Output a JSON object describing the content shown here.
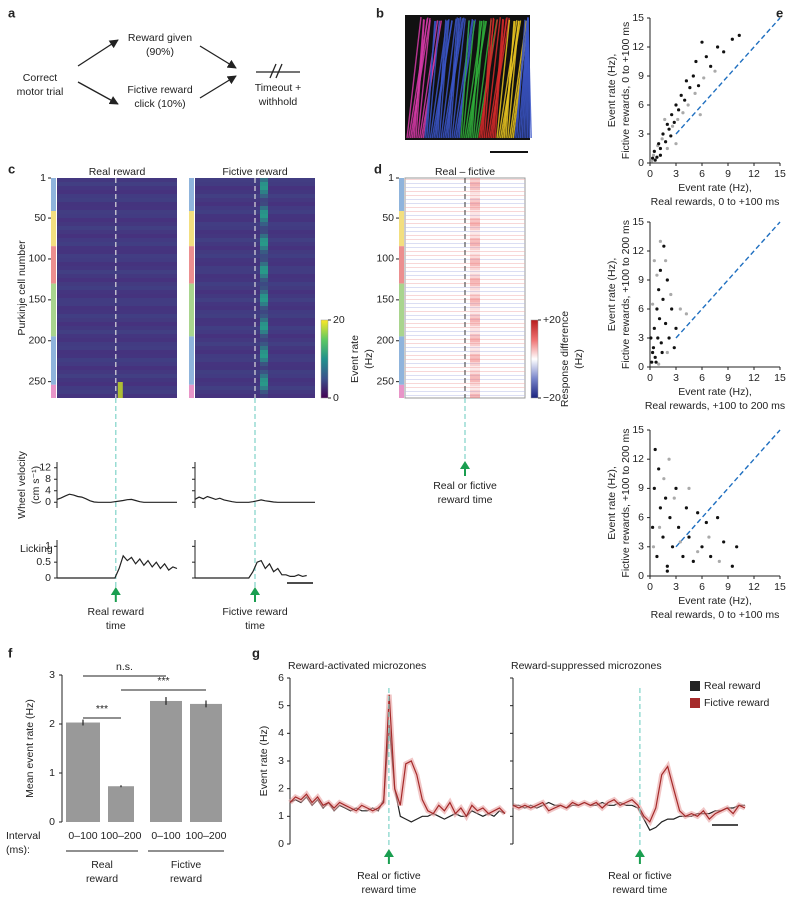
{
  "panel_labels": [
    "a",
    "b",
    "c",
    "d",
    "e",
    "f",
    "g"
  ],
  "diagram": {
    "start": [
      "Correct",
      "motor trial"
    ],
    "upper": [
      "Reward given",
      "(90%)"
    ],
    "lower": [
      "Fictive reward",
      "click (10%)"
    ],
    "end": [
      "Timeout +",
      "withhold"
    ]
  },
  "heatmaps": [
    {
      "title": "Real reward",
      "ylabel": "Purkinje cell number",
      "ylim": [
        1,
        270
      ],
      "yticks": [
        1,
        50,
        100,
        150,
        200,
        250
      ],
      "caption": [
        "Real reward",
        "time"
      ]
    },
    {
      "title": "Fictive reward",
      "ylim": [
        1,
        270
      ],
      "caption": [
        "Fictive reward",
        "time"
      ]
    },
    {
      "title": "Real – fictive",
      "ylim": [
        1,
        270
      ],
      "yticks": [
        1,
        50,
        100,
        150,
        200,
        250
      ],
      "caption": [
        "Real or fictive",
        "reward time"
      ]
    }
  ],
  "colorbars": [
    {
      "label": [
        "Event rate",
        "(Hz)"
      ],
      "lim": [
        0,
        20
      ],
      "ticks": [
        0,
        20
      ]
    },
    {
      "label": [
        "Response difference",
        "(Hz)"
      ],
      "lim": [
        -20,
        20
      ],
      "ticks": [
        {
          "value": 20,
          "label": "+20"
        },
        {
          "value": -20,
          "label": "−20"
        }
      ]
    }
  ],
  "chart_data": [
    {
      "type": "line",
      "ylabel": [
        "Wheel velocity",
        "(cm s⁻¹)"
      ],
      "ylim": [
        -2,
        14
      ],
      "yticks": [
        0,
        4,
        8,
        12
      ],
      "color": "#222222",
      "values": [
        1.0,
        1.5,
        2.2,
        2.8,
        2.5,
        2.0,
        1.8,
        1.2,
        0.5,
        0.1,
        0,
        0,
        0,
        0,
        0.2,
        0.4,
        0.6,
        0.9,
        1.0,
        0.6,
        0.2,
        0,
        0,
        0,
        0,
        0,
        0,
        0,
        0,
        0
      ]
    },
    {
      "type": "line",
      "ylim": [
        -2,
        14
      ],
      "yticks": [
        0,
        4,
        8,
        12
      ],
      "color": "#222222",
      "values": [
        1.0,
        1.8,
        1.2,
        2.0,
        1.5,
        1.0,
        1.4,
        0.8,
        0.5,
        0.2,
        0,
        0,
        0,
        0,
        0.2,
        0.5,
        0.8,
        0.5,
        0.3,
        0.1,
        0,
        0,
        0,
        0,
        0,
        0,
        0,
        0,
        0,
        0
      ]
    },
    {
      "type": "line",
      "ylabel": "Licking",
      "ylim": [
        0,
        1.2
      ],
      "yticks": [
        0,
        0.5,
        1
      ],
      "color": "#222222",
      "values": [
        0,
        0,
        0,
        0,
        0,
        0,
        0,
        0,
        0,
        0,
        0,
        0,
        0,
        0,
        0,
        0.3,
        0.7,
        0.55,
        0.65,
        0.45,
        0.6,
        0.4,
        0.55,
        0.35,
        0.5,
        0.3,
        0.45,
        0.25,
        0.35,
        0.3
      ]
    },
    {
      "type": "line",
      "ylim": [
        0,
        1.2
      ],
      "yticks": [
        0,
        0.5,
        1
      ],
      "color": "#222222",
      "values": [
        0,
        0,
        0,
        0,
        0,
        0,
        0,
        0,
        0,
        0,
        0,
        0,
        0,
        0,
        0.2,
        0.5,
        0.55,
        0.3,
        0.45,
        0.2,
        0.3,
        0.1,
        0.1,
        0.05,
        0.05,
        0.1,
        0.05,
        0.08,
        null,
        null
      ]
    },
    {
      "type": "scatter",
      "xlabel": [
        "Event rate (Hz),",
        "Real rewards, 0 to +100 ms"
      ],
      "ylabel": [
        "Event rate (Hz),",
        "Fictive rewards, 0 to +100 ms"
      ],
      "xlim": [
        0,
        15
      ],
      "ylim": [
        0,
        15
      ],
      "xticks": [
        0,
        3,
        6,
        9,
        12,
        15
      ],
      "yticks": [
        0,
        3,
        6,
        9,
        12,
        15
      ],
      "series": [
        {
          "color": "#aaaaaa",
          "x": [
            0.4,
            0.9,
            1.4,
            2,
            2.6,
            3.2,
            3.8,
            4.4,
            5.2,
            6.2,
            7.5,
            1.7,
            0.2,
            3,
            5.8
          ],
          "values": [
            0.8,
            1.8,
            2.5,
            1.5,
            3.8,
            4.5,
            5.2,
            6,
            7.2,
            8.8,
            9.5,
            4.5,
            0.2,
            2,
            5
          ]
        },
        {
          "color": "#111111",
          "x": [
            0.3,
            0.5,
            0.8,
            1,
            1.2,
            1.5,
            1.8,
            2,
            2.2,
            2.5,
            2.8,
            3,
            3.3,
            3.6,
            4,
            4.2,
            4.6,
            5,
            5.3,
            5.6,
            6,
            6.5,
            7,
            7.8,
            8.5,
            9.5,
            10.3,
            1.2,
            0.6,
            2.4
          ],
          "values": [
            0.5,
            1.2,
            0.6,
            2,
            1.5,
            3,
            2.2,
            4,
            3.5,
            5,
            4.2,
            6,
            5.5,
            7,
            6.5,
            8.5,
            7.8,
            9,
            10.5,
            8,
            12.5,
            11,
            10,
            12,
            11.5,
            12.8,
            13.2,
            0.8,
            0.3,
            2.8
          ]
        }
      ]
    },
    {
      "type": "scatter",
      "xlabel": [
        "Event rate (Hz),",
        "Real rewards, +100 to 200 ms"
      ],
      "ylabel": [
        "Event rate (Hz),",
        "Fictive rewards, +100 to 200 ms"
      ],
      "xlim": [
        0,
        15
      ],
      "ylim": [
        0,
        15
      ],
      "xticks": [
        0,
        3,
        6,
        9,
        12,
        15
      ],
      "yticks": [
        0,
        3,
        6,
        9,
        12,
        15
      ],
      "series": [
        {
          "color": "#aaaaaa",
          "x": [
            0.3,
            0.8,
            1.2,
            1.8,
            2.4,
            3.5,
            4.2,
            1,
            2,
            0.5
          ],
          "values": [
            6.5,
            9.5,
            13,
            11,
            7.5,
            6,
            5.5,
            0.3,
            1.5,
            11
          ]
        },
        {
          "color": "#111111",
          "x": [
            0.2,
            0.4,
            0.5,
            0.6,
            0.8,
            0.9,
            1,
            1.1,
            1.2,
            1.3,
            1.5,
            1.6,
            1.8,
            2,
            2.2,
            2.5,
            2.8,
            3,
            0.3,
            0.7,
            1.4,
            0.1
          ],
          "values": [
            0.5,
            2,
            4,
            1,
            6,
            3,
            8,
            5,
            10,
            2.5,
            7,
            12.5,
            4.5,
            9,
            3,
            6,
            2,
            4,
            1.5,
            0.5,
            1.5,
            3
          ]
        }
      ]
    },
    {
      "type": "scatter",
      "xlabel": [
        "Event rate (Hz),",
        "Real rewards, 0 to +100 ms"
      ],
      "ylabel": [
        "Event rate (Hz),",
        "Fictive rewards, +100 to 200 ms"
      ],
      "xlim": [
        0,
        15
      ],
      "ylim": [
        0,
        15
      ],
      "xticks": [
        0,
        3,
        6,
        9,
        12,
        15
      ],
      "yticks": [
        0,
        3,
        6,
        9,
        12,
        15
      ],
      "series": [
        {
          "color": "#aaaaaa",
          "x": [
            0.4,
            1.1,
            1.6,
            2.2,
            2.8,
            3.5,
            4.5,
            5.5,
            6.8,
            8
          ],
          "values": [
            3,
            5,
            10,
            12,
            8,
            3.5,
            9,
            2.5,
            4,
            1.5
          ]
        },
        {
          "color": "#111111",
          "x": [
            0.3,
            0.5,
            0.8,
            1,
            1.2,
            1.5,
            1.8,
            2,
            2.3,
            2.6,
            3,
            3.3,
            3.8,
            4.2,
            4.5,
            5,
            5.5,
            6,
            6.5,
            7,
            7.8,
            8.5,
            9.5,
            10,
            0.6,
            2
          ],
          "values": [
            5,
            9,
            2,
            11,
            7,
            4,
            8,
            1,
            6,
            3,
            9,
            5,
            2,
            7,
            4,
            1.5,
            6.5,
            3,
            5.5,
            2,
            6,
            3.5,
            1,
            3,
            13,
            0.5
          ]
        }
      ]
    },
    {
      "type": "bar",
      "ylabel": "Mean event rate (Hz)",
      "ylim": [
        0,
        3
      ],
      "yticks": [
        0,
        1,
        2,
        3
      ],
      "color": "#999999",
      "categories": [
        "0–100",
        "100–200",
        "0–100",
        "100–200"
      ],
      "values": [
        2.03,
        0.73,
        2.47,
        2.41
      ],
      "errors": [
        0.06,
        0.02,
        0.08,
        0.07
      ],
      "xlabel": [
        "Interval",
        "(ms):"
      ],
      "groups": [
        [
          "Real",
          "reward"
        ],
        [
          "Fictive",
          "reward"
        ]
      ],
      "annotations": [
        "***",
        "n.s.",
        "***"
      ]
    },
    {
      "type": "line",
      "title": "Reward-activated microzones",
      "ylabel": "Event rate (Hz)",
      "ylim": [
        0,
        6
      ],
      "yticks": [
        0,
        1,
        2,
        3,
        4,
        5,
        6
      ],
      "annotation": [
        "Real or fictive",
        "reward time"
      ],
      "series": [
        {
          "color": "#222222",
          "values": [
            1.5,
            1.6,
            1.5,
            1.7,
            1.4,
            1.6,
            1.3,
            1.5,
            1.2,
            1.4,
            1.3,
            1.2,
            1.3,
            1.2,
            1.2,
            1.3,
            1.2,
            1.6,
            4.3,
            2.0,
            1.0,
            0.9,
            0.8,
            0.9,
            1.0,
            1.0,
            1.1,
            1.0,
            0.9,
            1.0,
            1.1,
            1.0,
            1.0,
            1.2,
            1.1,
            1.0,
            1.1,
            1.0,
            1.2,
            1.1
          ]
        },
        {
          "color": "#a52a2a",
          "values": [
            1.5,
            1.7,
            1.6,
            1.8,
            1.5,
            1.7,
            1.4,
            1.5,
            1.3,
            1.5,
            1.4,
            1.3,
            1.2,
            1.4,
            1.3,
            1.2,
            1.3,
            1.5,
            5.4,
            2.0,
            1.4,
            2.9,
            3.0,
            2.5,
            1.6,
            1.2,
            1.1,
            1.4,
            1.2,
            1.5,
            1.1,
            1.3,
            1.0,
            1.4,
            1.2,
            1.3,
            1.1,
            1.2,
            1.3,
            1.1
          ]
        }
      ]
    },
    {
      "type": "line",
      "title": "Reward-suppressed microzones",
      "ylim": [
        0,
        6
      ],
      "yticks": [
        0,
        1,
        2,
        3,
        4,
        5,
        6
      ],
      "annotation": [
        "Real or fictive",
        "reward time"
      ],
      "legend": "upper right",
      "series": [
        {
          "name": "Real reward",
          "color": "#222222",
          "values": [
            1.4,
            1.4,
            1.3,
            1.4,
            1.3,
            1.4,
            1.5,
            1.4,
            1.4,
            1.3,
            1.4,
            1.4,
            1.5,
            1.4,
            1.4,
            1.5,
            1.4,
            1.4,
            1.5,
            1.4,
            1.4,
            1.3,
            0.9,
            0.5,
            0.6,
            0.8,
            0.9,
            0.9,
            1.0,
            1.0,
            1.0,
            1.1,
            1.1,
            1.1,
            1.2,
            1.2,
            1.3,
            1.3,
            1.4,
            1.4
          ]
        },
        {
          "name": "Fictive reward",
          "color": "#a52a2a",
          "values": [
            1.4,
            1.3,
            1.4,
            1.3,
            1.4,
            1.5,
            1.2,
            1.3,
            1.4,
            1.3,
            1.5,
            1.4,
            1.5,
            1.4,
            1.5,
            1.3,
            1.5,
            1.6,
            1.4,
            1.5,
            1.6,
            1.4,
            1.0,
            0.8,
            1.3,
            2.5,
            2.8,
            2.0,
            1.2,
            1.0,
            1.1,
            1.0,
            1.2,
            0.9,
            1.1,
            1.2,
            1.3,
            1.1,
            1.4,
            1.3
          ]
        }
      ]
    }
  ]
}
